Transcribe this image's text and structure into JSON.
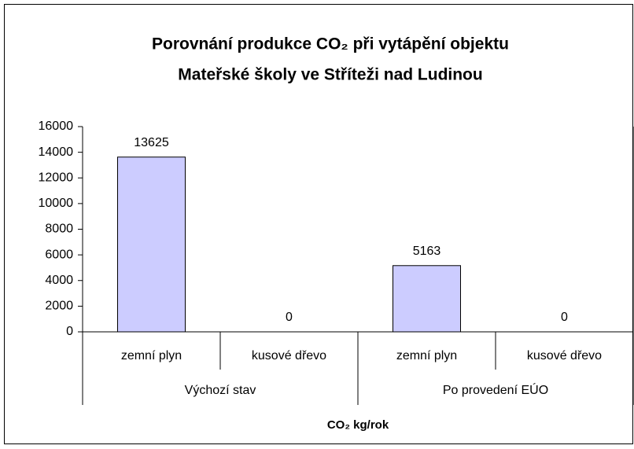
{
  "chart_data": {
    "type": "bar",
    "title": [
      "Porovnání produkce CO₂ při vytápění objektu",
      "Mateřské školy ve Stříteži nad Ludinou"
    ],
    "x_label": "CO₂ kg/rok",
    "categories": [
      "zemní plyn",
      "kusové dřevo",
      "zemní plyn",
      "kusové dřevo"
    ],
    "groups": [
      "Výchozí stav",
      "Po provedení EÚO"
    ],
    "values": [
      13625,
      0,
      5163,
      0
    ],
    "color": "#ccccff",
    "ylim": [
      0,
      16000
    ],
    "yticks": [
      0,
      2000,
      4000,
      6000,
      8000,
      10000,
      12000,
      14000,
      16000
    ],
    "grid": false
  }
}
